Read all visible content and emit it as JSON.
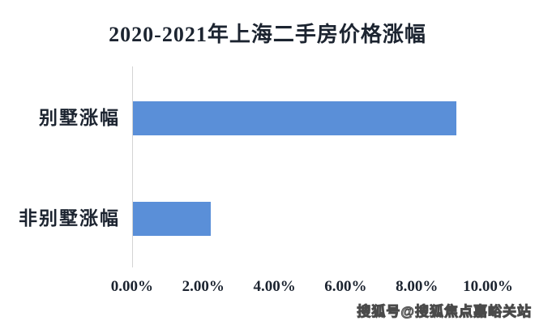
{
  "title": "2020-2021年上海二手房价格涨幅",
  "watermark": "搜狐号@搜狐焦点嘉峪关站",
  "chart_data": {
    "type": "bar",
    "orientation": "horizontal",
    "title": "2020-2021年上海二手房价格涨幅",
    "categories": [
      "别墅涨幅",
      "非别墅涨幅"
    ],
    "values": [
      9.1,
      2.2
    ],
    "unit": "%",
    "xlim": [
      0,
      10
    ],
    "x_tick_labels": [
      "0.00%",
      "2.00%",
      "4.00%",
      "6.00%",
      "8.00%",
      "10.00%"
    ],
    "xlabel": "",
    "ylabel": "",
    "grid": false,
    "legend": false,
    "bar_color": "#5a8fd8"
  },
  "colors": {
    "bar": "#5a8fd8",
    "text": "#1c2430",
    "axis_line": "#d4d4d4",
    "background": "#ffffff"
  }
}
